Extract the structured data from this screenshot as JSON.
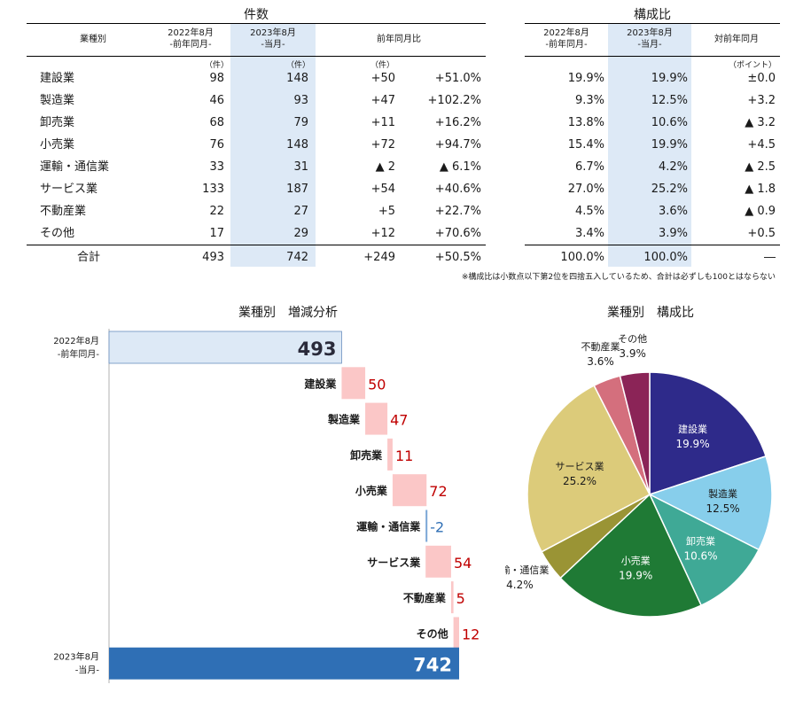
{
  "count_table": {
    "title": "件数",
    "headers": {
      "category": "業種別",
      "prev": [
        "2022年8月",
        "-前年同月-"
      ],
      "cur": [
        "2023年8月",
        "-当月-"
      ],
      "yoy": "前年同月比"
    },
    "units": {
      "prev": "（件）",
      "cur": "（件）",
      "diff": "（件）"
    },
    "rows": [
      {
        "category": "建設業",
        "prev": "98",
        "cur": "148",
        "diff": "+50",
        "rate": "+51.0%"
      },
      {
        "category": "製造業",
        "prev": "46",
        "cur": "93",
        "diff": "+47",
        "rate": "+102.2%"
      },
      {
        "category": "卸売業",
        "prev": "68",
        "cur": "79",
        "diff": "+11",
        "rate": "+16.2%"
      },
      {
        "category": "小売業",
        "prev": "76",
        "cur": "148",
        "diff": "+72",
        "rate": "+94.7%"
      },
      {
        "category": "運輸・通信業",
        "prev": "33",
        "cur": "31",
        "diff": "▲ 2",
        "rate": "▲ 6.1%"
      },
      {
        "category": "サービス業",
        "prev": "133",
        "cur": "187",
        "diff": "+54",
        "rate": "+40.6%"
      },
      {
        "category": "不動産業",
        "prev": "22",
        "cur": "27",
        "diff": "+5",
        "rate": "+22.7%"
      },
      {
        "category": "その他",
        "prev": "17",
        "cur": "29",
        "diff": "+12",
        "rate": "+70.6%"
      }
    ],
    "total": {
      "category": "合計",
      "prev": "493",
      "cur": "742",
      "diff": "+249",
      "rate": "+50.5%"
    }
  },
  "share_table": {
    "title": "構成比",
    "headers": {
      "prev": [
        "2022年8月",
        "-前年同月-"
      ],
      "cur": [
        "2023年8月",
        "-当月-"
      ],
      "yoy": "対前年同月"
    },
    "units": {
      "yoy": "（ポイント）"
    },
    "rows": [
      {
        "prev": "19.9%",
        "cur": "19.9%",
        "diff": "±0.0"
      },
      {
        "prev": "9.3%",
        "cur": "12.5%",
        "diff": "+3.2"
      },
      {
        "prev": "13.8%",
        "cur": "10.6%",
        "diff": "▲ 3.2"
      },
      {
        "prev": "15.4%",
        "cur": "19.9%",
        "diff": "+4.5"
      },
      {
        "prev": "6.7%",
        "cur": "4.2%",
        "diff": "▲ 2.5"
      },
      {
        "prev": "27.0%",
        "cur": "25.2%",
        "diff": "▲ 1.8"
      },
      {
        "prev": "4.5%",
        "cur": "3.6%",
        "diff": "▲ 0.9"
      },
      {
        "prev": "3.4%",
        "cur": "3.9%",
        "diff": "+0.5"
      }
    ],
    "total": {
      "prev": "100.0%",
      "cur": "100.0%",
      "diff": "―"
    }
  },
  "note": "※構成比は小数点以下第2位を四捨五入しているため、合計は必ずしも100とはならない",
  "chart_data": [
    {
      "type": "bar",
      "subtype": "waterfall",
      "orientation": "horizontal",
      "title": "業種別　増減分析",
      "start": {
        "label_lines": [
          "2022年8月",
          "-前年同月-"
        ],
        "value": 493
      },
      "steps": [
        {
          "category": "建設業",
          "value": 50
        },
        {
          "category": "製造業",
          "value": 47
        },
        {
          "category": "卸売業",
          "value": 11
        },
        {
          "category": "小売業",
          "value": 72
        },
        {
          "category": "運輸・通信業",
          "value": -2
        },
        {
          "category": "サービス業",
          "value": 54
        },
        {
          "category": "不動産業",
          "value": 5
        },
        {
          "category": "その他",
          "value": 12
        }
      ],
      "end": {
        "label_lines": [
          "2023年8月",
          "-当月-"
        ],
        "value": 742
      },
      "colors": {
        "start": "#dde9f6",
        "end": "#2f6fb5",
        "increase": "#fbc7c7",
        "decrease": "#7aa6d6",
        "increase_text": "#c00000",
        "decrease_text": "#2f6fb5"
      }
    },
    {
      "type": "pie",
      "title": "業種別　構成比",
      "slices": [
        {
          "label": "建設業",
          "value": 19.9,
          "display": "19.9%",
          "color": "#2e2a8a",
          "label_pos": "inside"
        },
        {
          "label": "製造業",
          "value": 12.5,
          "display": "12.5%",
          "color": "#87ceeb",
          "label_pos": "inside"
        },
        {
          "label": "卸売業",
          "value": 10.6,
          "display": "10.6%",
          "color": "#3fa996",
          "label_pos": "inside"
        },
        {
          "label": "小売業",
          "value": 19.9,
          "display": "19.9%",
          "color": "#1f7a35",
          "label_pos": "inside"
        },
        {
          "label": "運輸・通信業",
          "value": 4.2,
          "display": "4.2%",
          "color": "#9a9435",
          "label_pos": "outside"
        },
        {
          "label": "サービス業",
          "value": 25.2,
          "display": "25.2%",
          "color": "#dccb7a",
          "label_pos": "inside"
        },
        {
          "label": "不動産業",
          "value": 3.6,
          "display": "3.6%",
          "color": "#d46f7d",
          "label_pos": "outside"
        },
        {
          "label": "その他",
          "value": 3.9,
          "display": "3.9%",
          "color": "#8b2457",
          "label_pos": "outside"
        }
      ]
    }
  ]
}
